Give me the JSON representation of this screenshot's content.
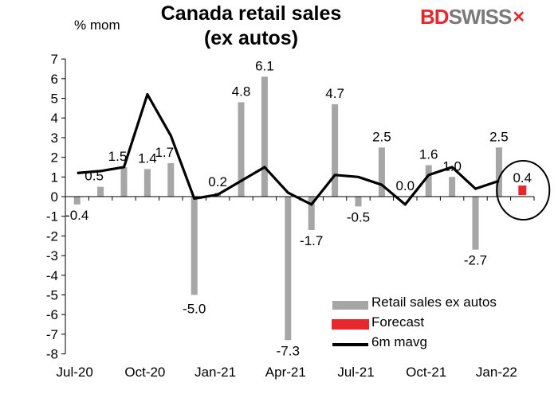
{
  "header": {
    "title_line1": "Canada retail sales",
    "title_line2": "(ex autos)",
    "unit_label": "% mom",
    "brand_bd": "BD",
    "brand_rest": "SWISS",
    "brand_mark": "✕"
  },
  "colors": {
    "bars": "#a6a6a6",
    "forecast": "#e8262b",
    "line": "#000000",
    "brand_red": "#e8262b",
    "brand_grey": "#7a7a7a"
  },
  "chart_data": {
    "type": "bar",
    "title": "Canada retail sales (ex autos)",
    "ylabel": "% mom",
    "ylim": [
      -8,
      7
    ],
    "yticks": [
      -8,
      -7,
      -6,
      -5,
      -4,
      -3,
      -2,
      -1,
      0,
      1,
      2,
      3,
      4,
      5,
      6,
      7
    ],
    "x": [
      "Jul-20",
      "Aug-20",
      "Sep-20",
      "Oct-20",
      "Nov-20",
      "Dec-20",
      "Jan-21",
      "Feb-21",
      "Mar-21",
      "Apr-21",
      "May-21",
      "Jun-21",
      "Jul-21",
      "Aug-21",
      "Sep-21",
      "Oct-21",
      "Nov-21",
      "Dec-21",
      "Jan-22",
      "Feb-22"
    ],
    "x_tick_labels": [
      "Jul-20",
      "Oct-20",
      "Jan-21",
      "Apr-21",
      "Jul-21",
      "Oct-21",
      "Jan-22"
    ],
    "x_tick_indices": [
      0,
      3,
      6,
      9,
      12,
      15,
      18
    ],
    "series": [
      {
        "name": "Retail sales ex autos",
        "kind": "bar",
        "values": [
          -0.4,
          0.5,
          1.5,
          1.4,
          1.7,
          -5.0,
          0.2,
          4.8,
          6.1,
          -7.3,
          -1.7,
          4.7,
          -0.5,
          2.5,
          0.0,
          1.6,
          1.0,
          -2.7,
          2.5,
          null
        ],
        "data_labels": [
          "-0.4",
          "0.5",
          "1.5",
          "1.4",
          "1.7",
          "-5.0",
          "0.2",
          "4.8",
          "6.1",
          "-7.3",
          "-1.7",
          "4.7",
          "-0.5",
          "2.5",
          "0.0",
          "1.6",
          "1.0",
          "-2.7",
          "2.5",
          ""
        ]
      },
      {
        "name": "Forecast",
        "kind": "bar",
        "values": [
          null,
          null,
          null,
          null,
          null,
          null,
          null,
          null,
          null,
          null,
          null,
          null,
          null,
          null,
          null,
          null,
          null,
          null,
          null,
          0.4
        ],
        "data_labels": [
          "",
          "",
          "",
          "",
          "",
          "",
          "",
          "",
          "",
          "",
          "",
          "",
          "",
          "",
          "",
          "",
          "",
          "",
          "",
          "0.4"
        ]
      },
      {
        "name": "6m mavg",
        "kind": "line",
        "values": [
          1.2,
          1.3,
          1.5,
          5.2,
          3.1,
          -0.1,
          0.1,
          0.8,
          1.5,
          0.2,
          -0.4,
          1.1,
          1.0,
          0.6,
          -0.4,
          1.1,
          1.5,
          0.4,
          0.8,
          null
        ]
      }
    ],
    "legend": {
      "placement": "bottom-right",
      "entries": [
        "Retail sales ex autos",
        "Forecast",
        "6m mavg"
      ]
    },
    "annotation": "circle around forecast",
    "grid": false
  }
}
